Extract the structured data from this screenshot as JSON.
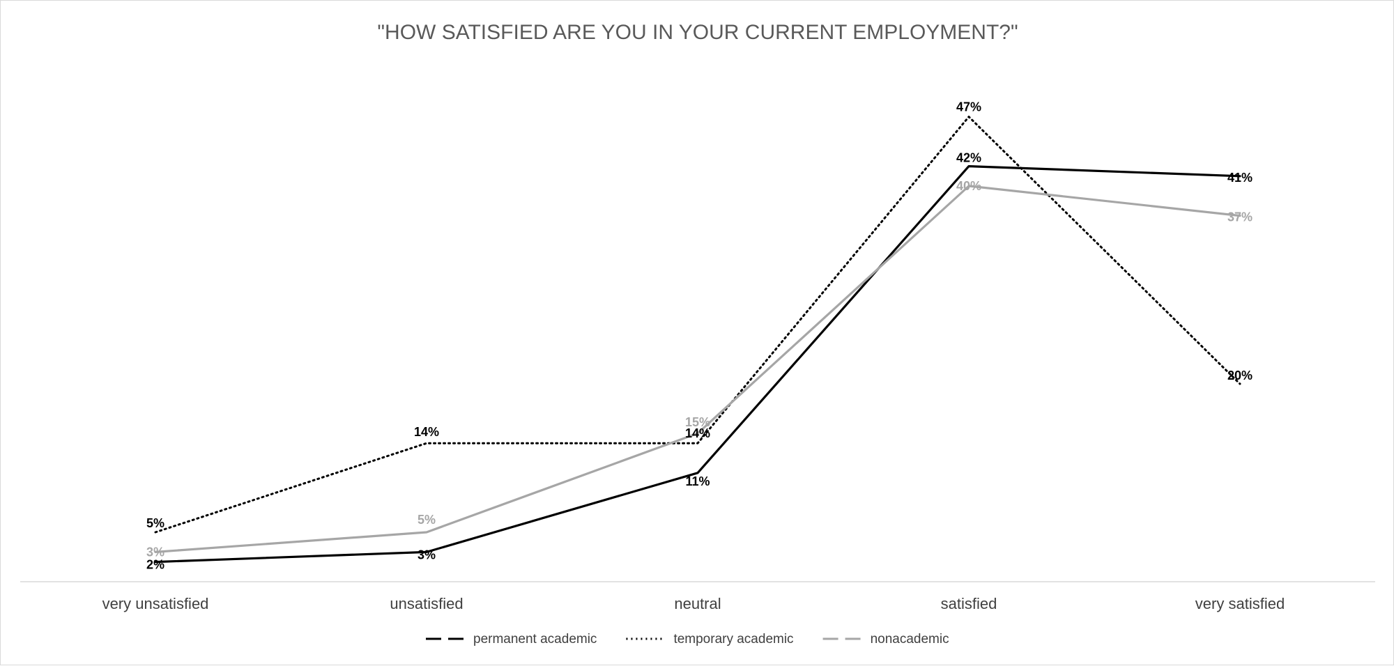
{
  "chart_data": {
    "type": "line",
    "title": "\"HOW SATISFIED ARE YOU IN YOUR CURRENT EMPLOYMENT?\"",
    "xlabel": "",
    "ylabel": "",
    "categories": [
      "very unsatisfied",
      "unsatisfied",
      "neutral",
      "satisfied",
      "very satisfied"
    ],
    "ylim": [
      0,
      50
    ],
    "grid": false,
    "legend_position": "bottom",
    "series": [
      {
        "name": "permanent academic",
        "values": [
          2,
          3,
          11,
          42,
          41
        ],
        "labels": [
          "2%",
          "3%",
          "11%",
          "42%",
          "41%"
        ],
        "color": "#000000",
        "line_style": "solid"
      },
      {
        "name": "temporary academic",
        "values": [
          5,
          14,
          14,
          47,
          20
        ],
        "labels": [
          "5%",
          "14%",
          "14%",
          "47%",
          "20%"
        ],
        "color": "#000000",
        "line_style": "dotted"
      },
      {
        "name": "nonacademic",
        "values": [
          3,
          5,
          15,
          40,
          37
        ],
        "labels": [
          "3%",
          "5%",
          "15%",
          "40%",
          "37%"
        ],
        "color": "#a6a6a6",
        "line_style": "solid"
      }
    ]
  }
}
